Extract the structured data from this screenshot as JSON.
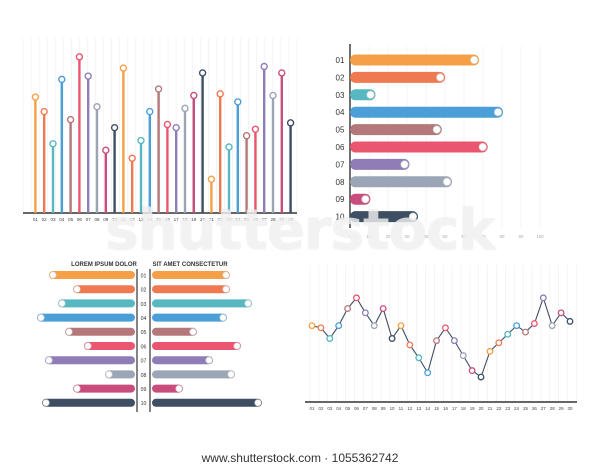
{
  "palette": [
    "#f5a046",
    "#ef7a52",
    "#57b8c2",
    "#4a9fd8",
    "#b5787a",
    "#ea566f",
    "#8e7db7",
    "#9ba5b5",
    "#c94d7c",
    "#3e4f63"
  ],
  "watermark": {
    "text": "shutterstock",
    "footer": "www.shutterstock.com · 1055362742"
  },
  "chart_data": [
    {
      "type": "bar",
      "orientation": "vertical-lollipop",
      "categories": [
        "01",
        "02",
        "03",
        "04",
        "05",
        "06",
        "07",
        "08",
        "09",
        "10",
        "11",
        "12",
        "13",
        "14",
        "15",
        "16",
        "17",
        "18",
        "19",
        "20",
        "21",
        "22",
        "23",
        "24",
        "25",
        "26",
        "27",
        "28",
        "29",
        "30"
      ],
      "values": [
        72,
        63,
        43,
        83,
        58,
        97,
        85,
        66,
        39,
        53,
        90,
        34,
        45,
        63,
        77,
        55,
        53,
        65,
        73,
        87,
        21,
        74,
        41,
        69,
        48,
        52,
        91,
        73,
        87,
        56
      ],
      "ylim": [
        0,
        100
      ],
      "grid": true
    },
    {
      "type": "bar",
      "orientation": "horizontal",
      "categories": [
        "01",
        "02",
        "03",
        "04",
        "05",
        "06",
        "07",
        "08",
        "09",
        "10"
      ],
      "values": [
        76,
        56,
        15,
        90,
        54,
        81,
        35,
        60,
        12,
        40
      ],
      "xticks": [
        "0",
        "10",
        "20",
        "30",
        "40",
        "50",
        "60",
        "70",
        "80",
        "90",
        "100"
      ],
      "xlim": [
        0,
        100
      ],
      "grid": true
    },
    {
      "type": "bar",
      "orientation": "diverging",
      "categories": [
        "01",
        "02",
        "03",
        "04",
        "05",
        "06",
        "07",
        "08",
        "09",
        "10"
      ],
      "left_title": "LOREM IPSUM DOLOR",
      "right_title": "SIT AMET CONSECTETUR",
      "left_values": [
        86,
        62,
        77,
        98,
        70,
        51,
        90,
        30,
        62,
        93
      ],
      "right_values": [
        78,
        78,
        100,
        75,
        45,
        89,
        61,
        83,
        31,
        110
      ]
    },
    {
      "type": "line",
      "x": [
        "01",
        "02",
        "03",
        "04",
        "05",
        "06",
        "07",
        "08",
        "09",
        "10",
        "11",
        "12",
        "13",
        "14",
        "15",
        "16",
        "17",
        "18",
        "19",
        "20",
        "21",
        "22",
        "23",
        "24",
        "25",
        "26",
        "27",
        "28",
        "29",
        "30"
      ],
      "y": [
        62,
        60,
        50,
        62,
        78,
        88,
        74,
        62,
        78,
        50,
        62,
        44,
        32,
        18,
        48,
        60,
        48,
        34,
        20,
        14,
        38,
        46,
        54,
        62,
        56,
        64,
        88,
        62,
        74,
        66
      ],
      "ylim": [
        0,
        100
      ],
      "grid": true
    }
  ]
}
